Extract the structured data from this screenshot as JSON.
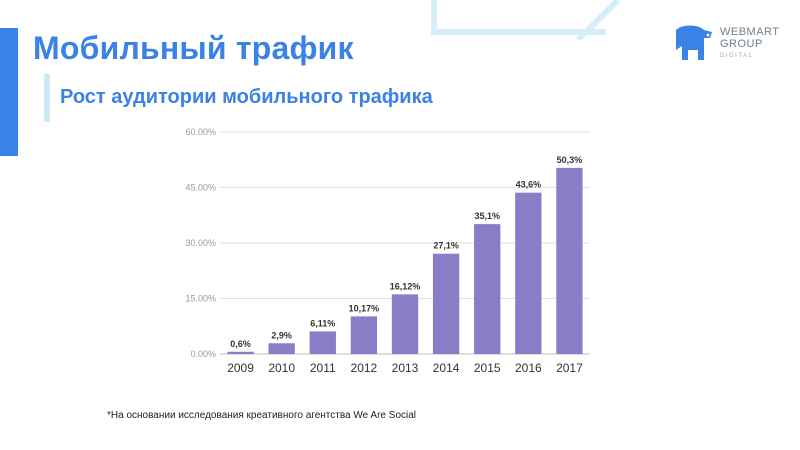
{
  "header": {
    "title": "Мобильный трафик",
    "subtitle": "Рост аудитории мобильного трафика"
  },
  "logo": {
    "line1": "WEBMART",
    "line2": "GROUP",
    "line3": "DIGITAL",
    "icon": "elephant-icon"
  },
  "colors": {
    "accent": "#3b82e6",
    "bar": "#8b7cc8",
    "grid": "#e1e1e1",
    "logo": "#3b82e6"
  },
  "chart_data": {
    "type": "bar",
    "categories": [
      "2009",
      "2010",
      "2011",
      "2012",
      "2013",
      "2014",
      "2015",
      "2016",
      "2017"
    ],
    "values": [
      0.6,
      2.9,
      6.11,
      10.17,
      16.12,
      27.1,
      35.1,
      43.6,
      50.3
    ],
    "data_labels": [
      "0,6%",
      "2,9%",
      "6,11%",
      "10,17%",
      "16,12%",
      "27,1%",
      "35,1%",
      "43,6%",
      "50,3%"
    ],
    "y_ticks": [
      0,
      15,
      30,
      45,
      60
    ],
    "y_tick_labels": [
      "0.00%",
      "15.00%",
      "30.00%",
      "45.00%",
      "60.00%"
    ],
    "ylim": [
      0,
      60
    ],
    "grid": true,
    "legend": "none"
  },
  "footnote": "*На основании исследования креативного агентства We Are Social"
}
